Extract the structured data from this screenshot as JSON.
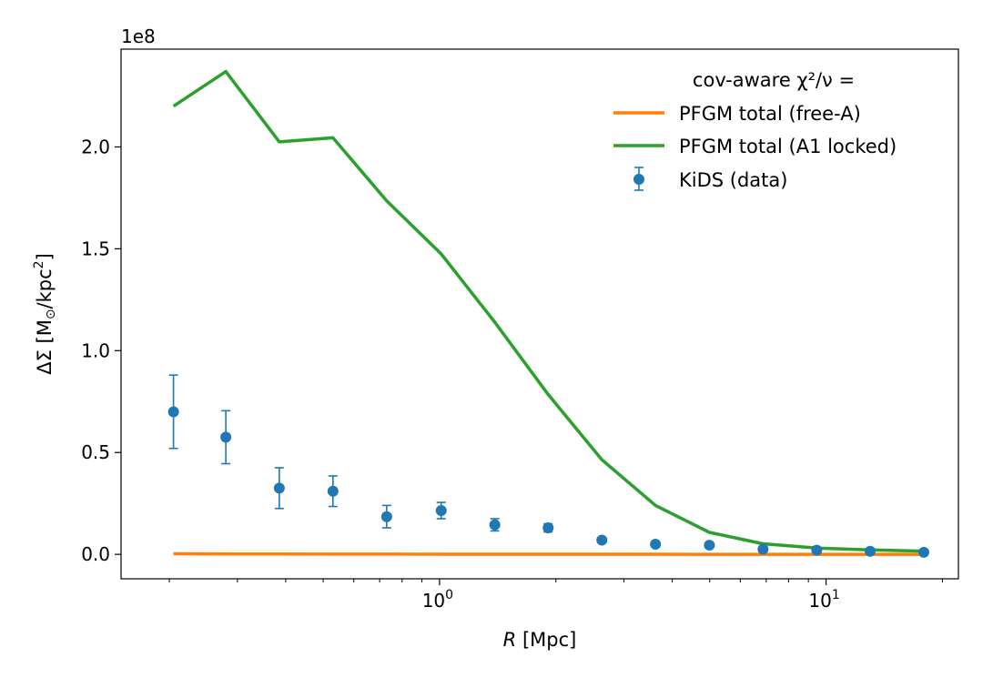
{
  "chart_data": {
    "type": "line",
    "x_scale": "log",
    "xlabel_var": "R",
    "xlabel_unit": " [Mpc]",
    "ylabel": "ΔΣ [M☉/kpc²]",
    "ylabel_parts": {
      "prefix": "ΔΣ [M",
      "sun": "⊙",
      "mid": "/kpc",
      "sup": "2",
      "suffix": "]"
    },
    "y_offset_text": "1e8",
    "y_scale_factor": 100000000,
    "xlim": [
      0.15,
      22
    ],
    "ylim": [
      -0.12,
      2.48
    ],
    "x_major_ticks": [
      {
        "value": 1,
        "base": "10",
        "exp": "0"
      },
      {
        "value": 10,
        "base": "10",
        "exp": "1"
      }
    ],
    "x_minor_ticks": [
      0.2,
      0.3,
      0.4,
      0.5,
      0.6,
      0.7,
      0.8,
      0.9,
      2,
      3,
      4,
      5,
      6,
      7,
      8,
      9,
      20
    ],
    "y_ticks": [
      {
        "value": 0.0,
        "label": "0.0"
      },
      {
        "value": 0.5,
        "label": "0.5"
      },
      {
        "value": 1.0,
        "label": "1.0"
      },
      {
        "value": 1.5,
        "label": "1.5"
      },
      {
        "value": 2.0,
        "label": "2.0"
      }
    ],
    "legend_title": "cov-aware χ²/ν =",
    "legend_placement": "upper right",
    "series": [
      {
        "name": "PFGM total (free-A)",
        "kind": "line",
        "color": "#ff7f0e",
        "x": [
          0.205,
          0.28,
          0.385,
          0.53,
          0.73,
          1.01,
          1.39,
          1.91,
          2.63,
          3.62,
          4.99,
          6.87,
          9.46,
          13.0,
          17.9
        ],
        "y": [
          0.003,
          0.002,
          0.0015,
          0.0012,
          0.001,
          0.0008,
          0.0007,
          0.0006,
          0.0005,
          0.0004,
          0.0003,
          0.0003,
          0.0002,
          0.0002,
          0.0001
        ]
      },
      {
        "name": "PFGM total (A1 locked)",
        "kind": "line",
        "color": "#2ca02c",
        "x": [
          0.205,
          0.28,
          0.385,
          0.53,
          0.73,
          1.01,
          1.39,
          1.91,
          2.63,
          3.62,
          4.99,
          6.87,
          9.46,
          13.0,
          17.9
        ],
        "y": [
          2.2,
          2.37,
          2.025,
          2.045,
          1.735,
          1.475,
          1.14,
          0.785,
          0.465,
          0.24,
          0.108,
          0.052,
          0.031,
          0.022,
          0.016
        ]
      },
      {
        "name": "KiDS (data)",
        "kind": "errorbar",
        "color": "#1f77b4",
        "x": [
          0.205,
          0.28,
          0.385,
          0.53,
          0.73,
          1.01,
          1.39,
          1.91,
          2.63,
          3.62,
          4.99,
          6.87,
          9.46,
          13.0,
          17.9
        ],
        "y": [
          0.7,
          0.575,
          0.325,
          0.31,
          0.185,
          0.215,
          0.145,
          0.13,
          0.07,
          0.05,
          0.045,
          0.025,
          0.02,
          0.015,
          0.01
        ],
        "yerr": [
          0.18,
          0.13,
          0.1,
          0.075,
          0.055,
          0.04,
          0.03,
          0.02,
          0.012,
          0.01,
          0.008,
          0.007,
          0.006,
          0.005,
          0.005
        ]
      }
    ]
  }
}
